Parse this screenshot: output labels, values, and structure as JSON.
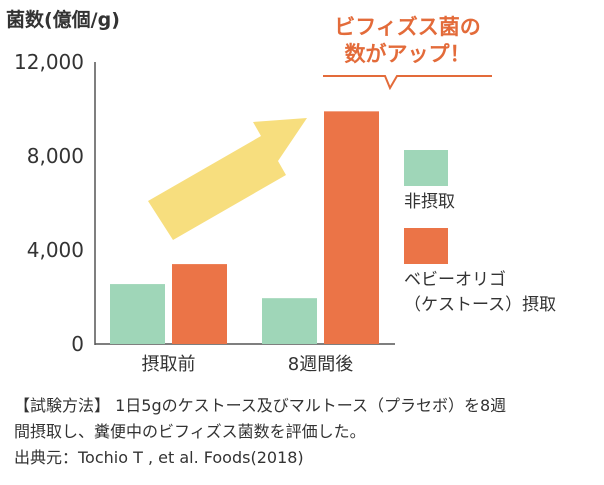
{
  "chart_data": {
    "type": "bar",
    "ylabel": "菌数(億個/g)",
    "ylim": [
      0,
      12000
    ],
    "yticks": [
      "12,000",
      "8,000",
      "4,000",
      "0"
    ],
    "ytick_values": [
      12000,
      8000,
      4000,
      0
    ],
    "categories": [
      "摂取前",
      "8週間後"
    ],
    "series": [
      {
        "name": "非摂取",
        "color": "#9fd6b8",
        "values": [
          2550,
          1950
        ]
      },
      {
        "name": "ベビーオリゴ（ケストース）摂取",
        "color": "#eb7447",
        "values": [
          3400,
          9900
        ]
      }
    ],
    "grid": false,
    "legend_position": "right"
  },
  "legend": {
    "items": [
      {
        "lines": [
          "非摂取"
        ],
        "color": "#9fd6b8"
      },
      {
        "lines": [
          "ベビーオリゴ",
          "（ケストース）摂取"
        ],
        "color": "#eb7447"
      }
    ]
  },
  "callout": {
    "line1": "ビフィズス菌の",
    "line2": "数がアップ！",
    "color": "#e36b3a"
  },
  "arrow_color": "#f7de7e",
  "caption": {
    "line1": "【試験方法】 1日5gのケストース及びマルトース（プラセボ）を8週",
    "line2": "間摂取し、糞便中のビフィズス菌数を評価した。",
    "line3": "出典元：Tochio T , et al. Foods(2018)"
  }
}
